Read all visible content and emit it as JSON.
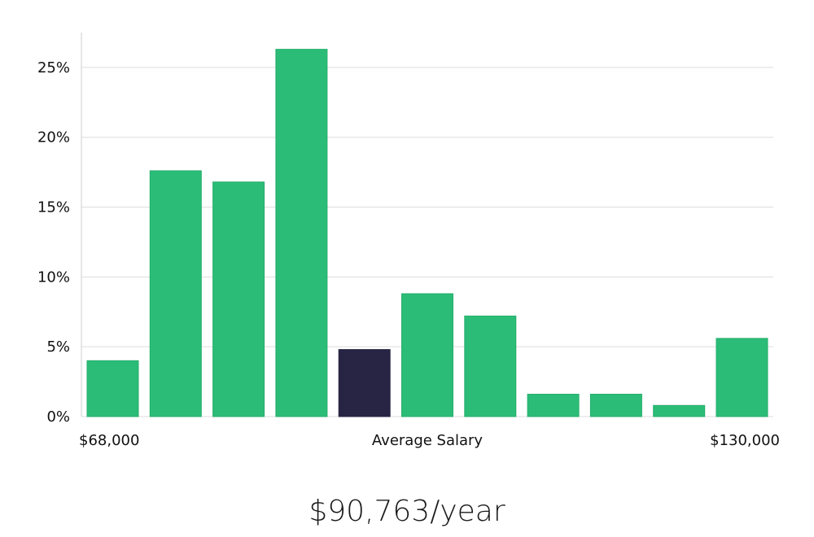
{
  "chart_data": {
    "type": "bar",
    "x_axis_labels": {
      "min": "$68,000",
      "center": "Average Salary",
      "max": "$130,000"
    },
    "y_ticks": [
      "0%",
      "5%",
      "10%",
      "15%",
      "20%",
      "25%"
    ],
    "ylim": [
      0,
      27.5
    ],
    "grid": true,
    "values": [
      4.0,
      17.6,
      16.8,
      26.3,
      4.8,
      8.8,
      7.2,
      1.6,
      1.6,
      0.8,
      5.6
    ],
    "highlight_index": 4,
    "colors": {
      "bar": "#2bbd77",
      "bar_edge": "#25ad6c",
      "highlight": "#272543",
      "grid": "#dddddd",
      "axis": "#cccccc"
    }
  },
  "salary_summary": "$90,763/year"
}
